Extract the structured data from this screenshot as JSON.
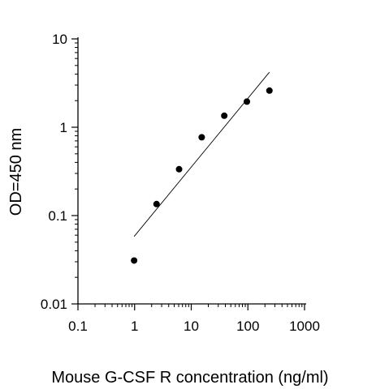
{
  "chart_data": {
    "type": "scatter",
    "title": "",
    "xlabel": "Mouse G-CSF R concentration (ng/ml)",
    "ylabel": "OD=450 nm",
    "xscale": "log",
    "yscale": "log",
    "xlim": [
      0.1,
      1000
    ],
    "ylim": [
      0.01,
      10
    ],
    "grid": false,
    "legend": "none",
    "x_ticks": [
      0.1,
      1,
      10,
      100,
      1000
    ],
    "x_tick_labels": [
      "0.1",
      "1",
      "10",
      "100",
      "1000"
    ],
    "y_ticks": [
      0.01,
      0.1,
      1,
      10
    ],
    "y_tick_labels": [
      "0.01",
      "0.1",
      "1",
      "10"
    ],
    "series": [
      {
        "x": [
          0.98,
          2.44,
          6.1,
          15.3,
          38.3,
          96,
          240
        ],
        "y": [
          0.031,
          0.135,
          0.335,
          0.77,
          1.35,
          1.95,
          2.6
        ],
        "color": "#000000",
        "marker": "filled-circle"
      }
    ],
    "trendline": {
      "x": [
        0.98,
        240
      ],
      "y": [
        0.058,
        4.2
      ],
      "color": "#000000"
    }
  }
}
